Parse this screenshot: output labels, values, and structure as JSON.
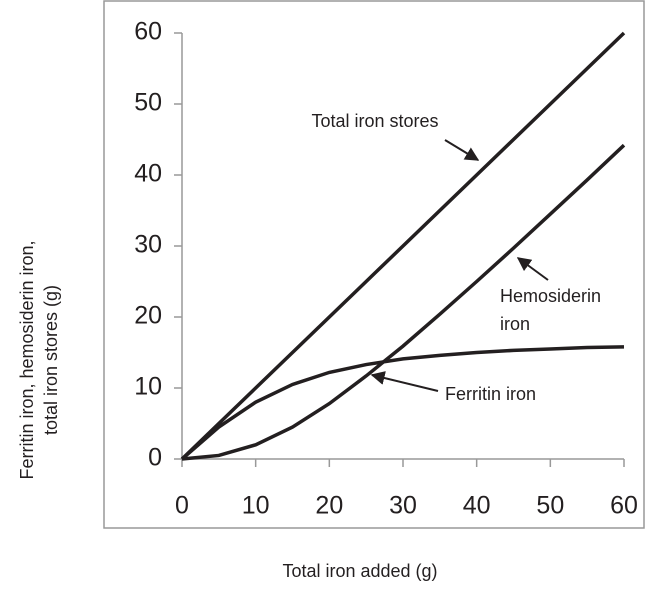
{
  "chart_data": {
    "type": "line",
    "x_label": "Total iron added (g)",
    "y_label": [
      "Ferritin iron, hemosiderin iron,",
      "total iron stores (g)"
    ],
    "x": [
      0,
      5,
      10,
      15,
      20,
      25,
      30,
      35,
      40,
      45,
      50,
      55,
      60
    ],
    "series": [
      {
        "name": "Total iron stores",
        "color": "#231f20",
        "values": [
          0,
          5,
          10,
          15,
          20,
          25,
          30,
          35,
          40,
          45,
          50,
          55,
          60
        ]
      },
      {
        "name": "Hemosiderin iron",
        "color": "#231f20",
        "values": [
          0,
          0.5,
          2,
          4.5,
          7.8,
          11.7,
          15.9,
          20.4,
          25,
          29.7,
          34.5,
          39.3,
          44.2
        ]
      },
      {
        "name": "Ferritin iron",
        "color": "#231f20",
        "values": [
          0,
          4.5,
          8,
          10.5,
          12.2,
          13.3,
          14.1,
          14.6,
          15,
          15.3,
          15.5,
          15.7,
          15.8
        ]
      }
    ],
    "annotations": [
      {
        "lines": [
          "Total iron stores"
        ]
      },
      {
        "lines": [
          "Hemosiderin",
          "iron"
        ]
      },
      {
        "lines": [
          "Ferritin iron"
        ]
      }
    ],
    "xlim": [
      0,
      60
    ],
    "xticks": [
      0,
      10,
      20,
      30,
      40,
      50,
      60
    ],
    "ylim": [
      0,
      60
    ],
    "yticks": [
      0,
      10,
      20,
      30,
      40,
      50,
      60
    ]
  }
}
